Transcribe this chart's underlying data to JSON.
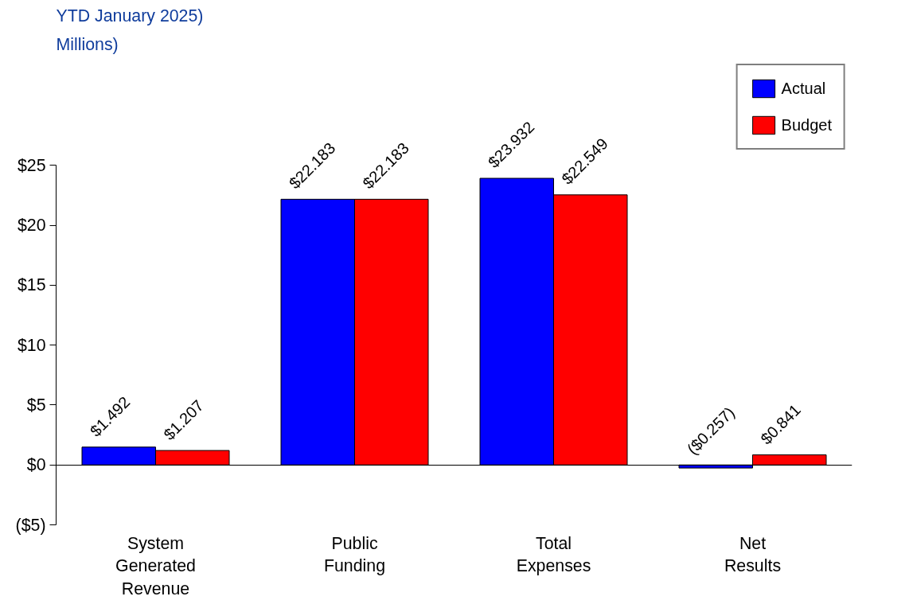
{
  "chart_data": {
    "type": "bar",
    "title": "YTD January 2025)",
    "subtitle": "Millions)",
    "categories": [
      "System\nGenerated\nRevenue",
      "Public\nFunding",
      "Total\nExpenses",
      "Net\nResults"
    ],
    "series": [
      {
        "name": "Actual",
        "color": "#0000ff",
        "values": [
          1.492,
          22.183,
          23.932,
          -0.257
        ],
        "value_labels": [
          "$1.492",
          "$22.183",
          "$23.932",
          "($0.257)"
        ]
      },
      {
        "name": "Budget",
        "color": "#ff0000",
        "values": [
          1.207,
          22.183,
          22.549,
          0.841
        ],
        "value_labels": [
          "$1.207",
          "$22.183",
          "$22.549",
          "$0.841"
        ]
      }
    ],
    "ylim": [
      -5,
      25
    ],
    "yticks": [
      {
        "value": -5,
        "label": "($5)"
      },
      {
        "value": 0,
        "label": "$0"
      },
      {
        "value": 5,
        "label": "$5"
      },
      {
        "value": 10,
        "label": "$10"
      },
      {
        "value": 15,
        "label": "$15"
      },
      {
        "value": 20,
        "label": "$20"
      },
      {
        "value": 25,
        "label": "$25"
      }
    ],
    "legend": "top right"
  }
}
